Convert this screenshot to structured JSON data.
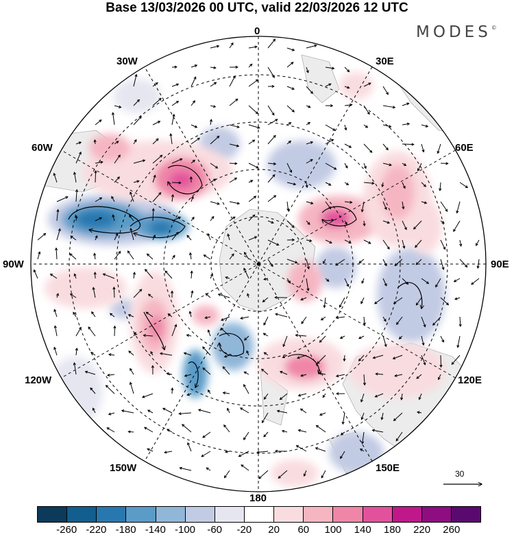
{
  "title": "Base 13/03/2026 00 UTC, valid 22/03/2026 12 UTC",
  "brand": {
    "name": "MODES",
    "mark": "©"
  },
  "longitude_labels": {
    "lon_0": "0",
    "lon_30e": "30E",
    "lon_60e": "60E",
    "lon_90e": "90E",
    "lon_120e": "120E",
    "lon_150e": "150E",
    "lon_180": "180",
    "lon_150w": "150W",
    "lon_120w": "120W",
    "lon_90w": "90W",
    "lon_60w": "60W",
    "lon_30w": "30W"
  },
  "reference_vector": {
    "label": "30"
  },
  "colorbar": {
    "colors": [
      "#0b3a5b",
      "#125e8e",
      "#2878b0",
      "#5a9bc8",
      "#90b6d8",
      "#c2cbe4",
      "#e6e6f1",
      "#ffffff",
      "#f9dcdf",
      "#f5b6c2",
      "#ef86a8",
      "#e2529c",
      "#c0188a",
      "#8e0d80",
      "#5a0a6f"
    ],
    "ticks": [
      "-260",
      "-220",
      "-180",
      "-140",
      "-100",
      "-60",
      "-20",
      "20",
      "60",
      "100",
      "140",
      "180",
      "220",
      "260"
    ]
  }
}
